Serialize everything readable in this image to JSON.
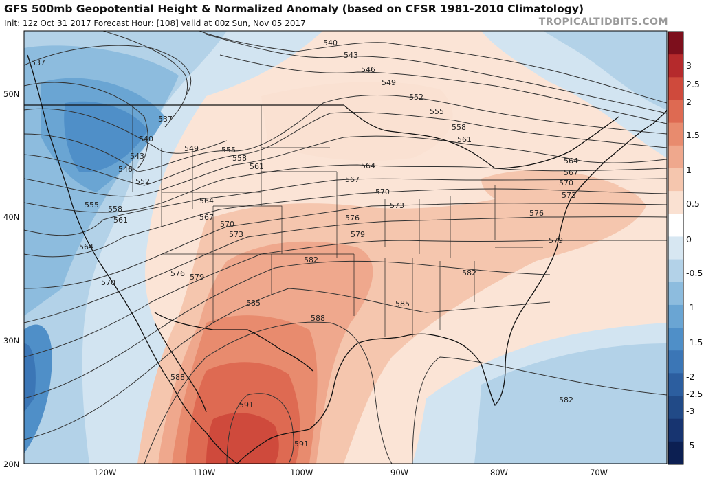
{
  "header": {
    "title": "GFS 500mb Geopotential Height & Normalized Anomaly (based on CFSR 1981-2010 Climatology)",
    "subtitle": "Init: 12z Oct 31 2017   Forecast Hour: [108]   valid at 00z Sun, Nov 05 2017",
    "site": "TROPICALTIDBITS.COM"
  },
  "map": {
    "lat_labels": [
      "50N",
      "40N",
      "30N",
      "20N"
    ],
    "lon_labels": [
      "120W",
      "110W",
      "100W",
      "90W",
      "80W",
      "70W"
    ],
    "contour_labels": [
      "537",
      "540",
      "543",
      "546",
      "549",
      "552",
      "555",
      "558",
      "561",
      "564",
      "567",
      "570",
      "573",
      "576",
      "579",
      "582",
      "585",
      "588",
      "591"
    ]
  },
  "colorbar": {
    "ticks": [
      "3",
      "2.5",
      "2",
      "1.5",
      "1",
      "0.5",
      "0",
      "-0.5",
      "-1",
      "-1.5",
      "-2",
      "-2.5",
      "-3",
      "-5"
    ],
    "colors": [
      "#7d0f1c",
      "#b52a2c",
      "#cf4a3c",
      "#de6a52",
      "#e88b6e",
      "#efa88d",
      "#f5c6ae",
      "#fae1d2",
      "#ffffff",
      "#d7e7f2",
      "#b3d2e8",
      "#8dbcde",
      "#6aa5d3",
      "#4f8fc8",
      "#3b76b6",
      "#2c5e9f",
      "#214a87",
      "#173470",
      "#0c1f52"
    ]
  }
}
